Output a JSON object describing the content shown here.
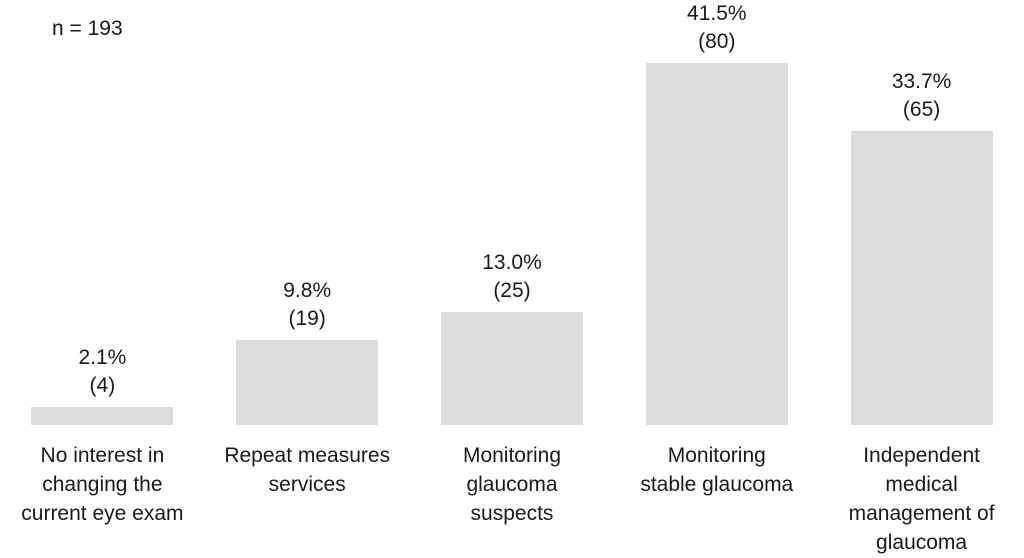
{
  "chart_data": {
    "type": "bar",
    "title": "",
    "xlabel": "",
    "ylabel": "",
    "n_label": "n = 193",
    "n": 193,
    "categories": [
      "No interest in changing the current eye exam",
      "Repeat measures services",
      "Monitoring glaucoma suspects",
      "Monitoring stable glaucoma",
      "Independent medical management of glaucoma"
    ],
    "categories_wrapped": [
      "No interest in\nchanging the\ncurrent eye exam",
      "Repeat measures\nservices",
      "Monitoring\nglaucoma\nsuspects",
      "Monitoring\nstable glaucoma",
      "Independent\nmedical\nmanagement of\nglaucoma"
    ],
    "values": [
      2.1,
      9.8,
      13.0,
      41.5,
      33.7
    ],
    "counts": [
      4,
      19,
      25,
      80,
      65
    ],
    "value_labels": [
      "2.1%",
      "9.8%",
      "13.0%",
      "41.5%",
      "33.7%"
    ],
    "count_labels": [
      "(4)",
      "(19)",
      "(25)",
      "(80)",
      "(65)"
    ],
    "ylim": [
      0,
      45
    ],
    "grid": false,
    "legend": "none",
    "bar_color": "#dcdcdc",
    "text_color": "#1a1a1a",
    "background_color": "#ffffff"
  }
}
